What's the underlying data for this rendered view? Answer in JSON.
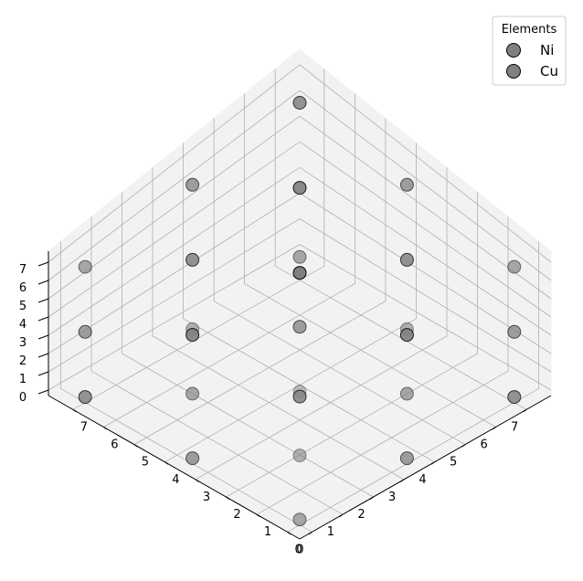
{
  "chart_data": {
    "type": "scatter",
    "projection": "3d",
    "title": "",
    "xlabel": "",
    "ylabel": "",
    "zlabel": "",
    "xlim": [
      -0.4,
      7.8
    ],
    "ylim": [
      -0.4,
      7.8
    ],
    "zlim": [
      -0.3,
      7.6
    ],
    "xticks": [
      "0",
      "1",
      "2",
      "3",
      "4",
      "5",
      "6",
      "7"
    ],
    "yticks": [
      "0",
      "1",
      "2",
      "3",
      "4",
      "5",
      "6",
      "7"
    ],
    "zticks": [
      "0",
      "1",
      "2",
      "3",
      "4",
      "5",
      "6",
      "7"
    ],
    "grid": true,
    "legend": {
      "title": "Elements",
      "placement": "top-right"
    },
    "series": [
      {
        "name": "Ni",
        "color": "#808080",
        "points": [
          [
            0,
            0,
            0
          ],
          [
            0,
            0,
            7
          ],
          [
            0,
            7,
            0
          ],
          [
            7,
            0,
            0
          ],
          [
            0,
            7,
            7
          ],
          [
            7,
            0,
            7
          ],
          [
            7,
            7,
            0
          ],
          [
            7,
            7,
            7
          ],
          [
            3.5,
            3.5,
            0
          ],
          [
            3.5,
            3.5,
            7
          ],
          [
            3.5,
            0,
            3.5
          ],
          [
            3.5,
            7,
            3.5
          ],
          [
            0,
            3.5,
            3.5
          ],
          [
            7,
            3.5,
            3.5
          ]
        ]
      },
      {
        "name": "Cu",
        "color": "#808080",
        "points": [
          [
            3.5,
            0,
            0
          ],
          [
            3.5,
            0,
            7
          ],
          [
            3.5,
            7,
            0
          ],
          [
            3.5,
            7,
            7
          ],
          [
            0,
            3.5,
            0
          ],
          [
            0,
            3.5,
            7
          ],
          [
            7,
            3.5,
            0
          ],
          [
            7,
            3.5,
            7
          ],
          [
            0,
            0,
            3.5
          ],
          [
            0,
            7,
            3.5
          ],
          [
            7,
            0,
            3.5
          ],
          [
            7,
            7,
            3.5
          ],
          [
            3.5,
            3.5,
            3.5
          ]
        ]
      }
    ]
  }
}
